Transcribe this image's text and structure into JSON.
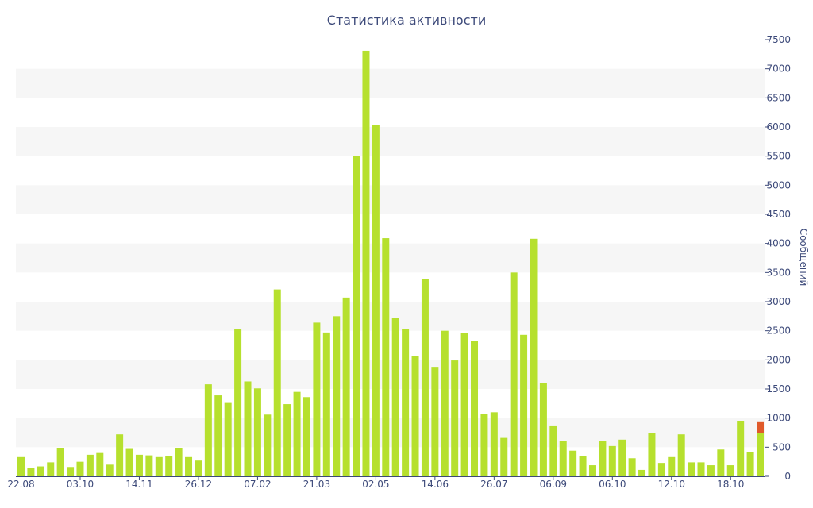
{
  "chart_data": {
    "type": "bar",
    "title": "Статистика активности",
    "xlabel": "",
    "ylabel": "Сообщений",
    "ylim": [
      0,
      7500
    ],
    "yticks": [
      0,
      500,
      1000,
      1500,
      2000,
      2500,
      3000,
      3500,
      4000,
      4500,
      5000,
      5500,
      6000,
      6500,
      7000,
      7500
    ],
    "y_axis_position": "right",
    "grid": "alternating horizontal bands",
    "x_tick_labels": [
      {
        "label": "22.08",
        "index": 0
      },
      {
        "label": "03.10",
        "index": 6
      },
      {
        "label": "14.11",
        "index": 12
      },
      {
        "label": "26.12",
        "index": 18
      },
      {
        "label": "07.02",
        "index": 24
      },
      {
        "label": "21.03",
        "index": 30
      },
      {
        "label": "02.05",
        "index": 36
      },
      {
        "label": "14.06",
        "index": 42
      },
      {
        "label": "26.07",
        "index": 48
      },
      {
        "label": "06.09",
        "index": 54
      },
      {
        "label": "06.10",
        "index": 60
      },
      {
        "label": "12.10",
        "index": 66
      },
      {
        "label": "18.10",
        "index": 72
      }
    ],
    "values": [
      330,
      150,
      170,
      240,
      480,
      160,
      250,
      370,
      400,
      200,
      720,
      470,
      370,
      360,
      330,
      350,
      480,
      330,
      270,
      1580,
      1390,
      1260,
      2530,
      1630,
      1510,
      1060,
      3210,
      1240,
      1450,
      1360,
      2640,
      2470,
      2750,
      3070,
      5500,
      7310,
      6040,
      4090,
      2720,
      2530,
      2060,
      3390,
      1880,
      2500,
      1990,
      2460,
      2330,
      1070,
      1100,
      660,
      3500,
      2430,
      4080,
      1600,
      860,
      600,
      440,
      350,
      190,
      600,
      520,
      630,
      310,
      110,
      750,
      230,
      330,
      720,
      240,
      240,
      190,
      460,
      190,
      950,
      410,
      750
    ],
    "last_bar_extra": 180,
    "colors": {
      "bar": "#b6e02e",
      "highlight": "#e05a2b",
      "band": "#f6f6f6",
      "text": "#3d4a7a",
      "axis": "#3d4a7a"
    }
  }
}
